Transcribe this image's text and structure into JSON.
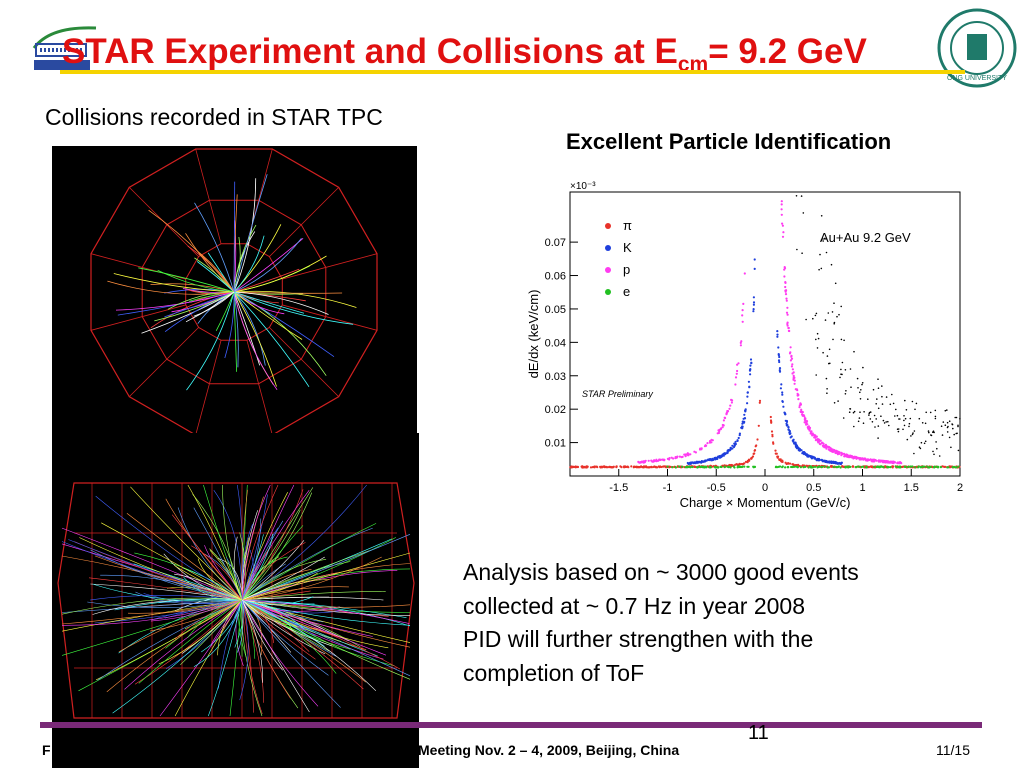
{
  "slide": {
    "title_main": "STAR Experiment and Collisions at  E",
    "title_sub": "cm",
    "title_end": "= 9.2 GeV",
    "subtitle": "Collisions recorded in STAR TPC",
    "pid_title": "Excellent Particle Identification",
    "logos": {
      "left": "Berkeley Lab logo",
      "right": "university seal",
      "right_text": "ONG UNIVERSITY"
    },
    "analysis_lines": [
      "Analysis based on ~ 3000 good events",
      "collected at ~ 0.7 Hz in year 2008",
      "PID will further strengthen with the",
      "completion of ToF"
    ],
    "page_number": "11",
    "footer_left": "F",
    "footer_mid": "Meeting Nov. 2 – 4, 2009, Beijing, China",
    "footer_right": "11/15",
    "colors": {
      "title": "#e01010",
      "title_underline": "#f5d300",
      "footer_bar": "#7a2a78"
    }
  },
  "chart_data": {
    "type": "scatter",
    "xlabel": "Charge × Momentum (GeV/c)",
    "ylabel": "dE/dx (keV/cm)",
    "y_multiplier": "×10⁻³",
    "xlim": [
      -2.0,
      2.0
    ],
    "ylim": [
      0,
      0.085
    ],
    "x_ticks": [
      "-1.5",
      "-1",
      "-0.5",
      "0",
      "0.5",
      "1",
      "1.5",
      "2"
    ],
    "x_tick_values": [
      -1.5,
      -1,
      -0.5,
      0,
      0.5,
      1,
      1.5,
      2
    ],
    "y_ticks": [
      "0.01",
      "0.02",
      "0.03",
      "0.04",
      "0.05",
      "0.06",
      "0.07"
    ],
    "y_tick_values": [
      0.01,
      0.02,
      0.03,
      0.04,
      0.05,
      0.06,
      0.07
    ],
    "annotation": "Au+Au 9.2 GeV",
    "watermark": "STAR Preliminary",
    "legend_position": "top-left",
    "series": [
      {
        "name": "π",
        "color": "#e8322a"
      },
      {
        "name": "K",
        "color": "#1f3fdc"
      },
      {
        "name": "p",
        "color": "#ff3cf0"
      },
      {
        "name": "e",
        "color": "#22c022"
      }
    ]
  }
}
